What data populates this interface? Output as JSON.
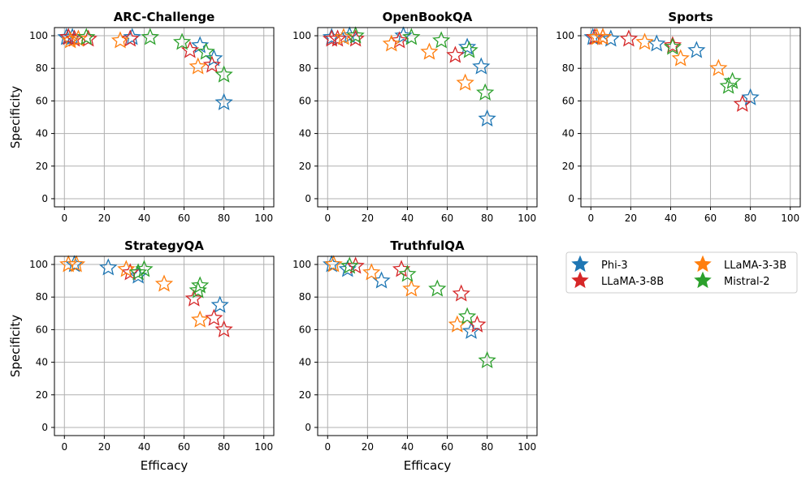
{
  "chart_data": {
    "type": "scatter",
    "marker": "hollow-star",
    "xlabel": "Efficacy",
    "ylabel": "Specificity",
    "xlim": [
      -5,
      105
    ],
    "ylim": [
      -5,
      105
    ],
    "xticks": [
      0,
      20,
      40,
      60,
      80,
      100
    ],
    "yticks": [
      0,
      20,
      40,
      60,
      80,
      100
    ],
    "grid": true,
    "series_colors": {
      "Phi-3": "#1f77b4",
      "LLaMA-3-8B": "#d62728",
      "LLaMA-3-3B": "#ff7f0e",
      "Mistral-2": "#2ca02c"
    },
    "legend": {
      "placement": "right of bottom row",
      "entries": [
        {
          "name": "Phi-3",
          "color": "#1f77b4"
        },
        {
          "name": "LLaMA-3-8B",
          "color": "#d62728"
        },
        {
          "name": "LLaMA-3-3B",
          "color": "#ff7f0e"
        },
        {
          "name": "Mistral-2",
          "color": "#2ca02c"
        }
      ]
    },
    "panels": [
      {
        "title": "ARC-Challenge",
        "series": [
          {
            "name": "Phi-3",
            "points": [
              [
                1,
                99
              ],
              [
                2,
                99
              ],
              [
                4,
                99
              ],
              [
                34,
                99
              ],
              [
                68,
                94
              ],
              [
                75,
                86
              ],
              [
                80,
                59
              ]
            ]
          },
          {
            "name": "LLaMA-3-8B",
            "points": [
              [
                2,
                99
              ],
              [
                5,
                98
              ],
              [
                12,
                98
              ],
              [
                33,
                98
              ],
              [
                63,
                91
              ],
              [
                74,
                82
              ]
            ]
          },
          {
            "name": "LLaMA-3-3B",
            "points": [
              [
                3,
                97
              ],
              [
                7,
                98
              ],
              [
                28,
                97
              ],
              [
                67,
                81
              ]
            ]
          },
          {
            "name": "Mistral-2",
            "points": [
              [
                11,
                99
              ],
              [
                43,
                99
              ],
              [
                59,
                96
              ],
              [
                71,
                90
              ],
              [
                80,
                76
              ]
            ]
          }
        ]
      },
      {
        "title": "OpenBookQA",
        "series": [
          {
            "name": "Phi-3",
            "points": [
              [
                2,
                99
              ],
              [
                11,
                100
              ],
              [
                38,
                100
              ],
              [
                70,
                93
              ],
              [
                77,
                81
              ],
              [
                80,
                49
              ]
            ]
          },
          {
            "name": "LLaMA-3-8B",
            "points": [
              [
                2,
                98
              ],
              [
                5,
                98
              ],
              [
                14,
                98
              ],
              [
                36,
                97
              ],
              [
                64,
                88
              ]
            ]
          },
          {
            "name": "LLaMA-3-3B",
            "points": [
              [
                8,
                99
              ],
              [
                32,
                95
              ],
              [
                51,
                90
              ],
              [
                69,
                71
              ]
            ]
          },
          {
            "name": "Mistral-2",
            "points": [
              [
                14,
                100
              ],
              [
                42,
                99
              ],
              [
                57,
                97
              ],
              [
                71,
                91
              ],
              [
                79,
                65
              ]
            ]
          }
        ]
      },
      {
        "title": "Sports",
        "series": [
          {
            "name": "Phi-3",
            "points": [
              [
                1,
                99
              ],
              [
                10,
                98
              ],
              [
                33,
                95
              ],
              [
                53,
                91
              ],
              [
                80,
                62
              ]
            ]
          },
          {
            "name": "LLaMA-3-8B",
            "points": [
              [
                2,
                99
              ],
              [
                6,
                99
              ],
              [
                19,
                98
              ],
              [
                41,
                94
              ],
              [
                76,
                58
              ]
            ]
          },
          {
            "name": "LLaMA-3-3B",
            "points": [
              [
                3,
                99
              ],
              [
                6,
                99
              ],
              [
                27,
                96
              ],
              [
                45,
                86
              ],
              [
                64,
                80
              ]
            ]
          },
          {
            "name": "Mistral-2",
            "points": [
              [
                41,
                93
              ],
              [
                69,
                69
              ],
              [
                71,
                72
              ]
            ]
          }
        ]
      },
      {
        "title": "StrategyQA",
        "series": [
          {
            "name": "Phi-3",
            "points": [
              [
                5,
                100
              ],
              [
                22,
                98
              ],
              [
                37,
                93
              ],
              [
                78,
                75
              ]
            ]
          },
          {
            "name": "LLaMA-3-8B",
            "points": [
              [
                33,
                95
              ],
              [
                65,
                79
              ],
              [
                75,
                67
              ],
              [
                80,
                60
              ]
            ]
          },
          {
            "name": "LLaMA-3-3B",
            "points": [
              [
                2,
                100
              ],
              [
                6,
                100
              ],
              [
                31,
                97
              ],
              [
                50,
                88
              ],
              [
                68,
                66
              ]
            ]
          },
          {
            "name": "Mistral-2",
            "points": [
              [
                37,
                95
              ],
              [
                40,
                97
              ],
              [
                67,
                84
              ],
              [
                68,
                87
              ]
            ]
          }
        ]
      },
      {
        "title": "TruthfulQA",
        "series": [
          {
            "name": "Phi-3",
            "points": [
              [
                2,
                100
              ],
              [
                10,
                97
              ],
              [
                27,
                90
              ],
              [
                72,
                59
              ]
            ]
          },
          {
            "name": "LLaMA-3-8B",
            "points": [
              [
                14,
                99
              ],
              [
                37,
                97
              ],
              [
                67,
                82
              ],
              [
                75,
                63
              ]
            ]
          },
          {
            "name": "LLaMA-3-3B",
            "points": [
              [
                3,
                100
              ],
              [
                22,
                95
              ],
              [
                42,
                85
              ],
              [
                65,
                63
              ]
            ]
          },
          {
            "name": "Mistral-2",
            "points": [
              [
                11,
                99
              ],
              [
                40,
                94
              ],
              [
                55,
                85
              ],
              [
                70,
                68
              ],
              [
                80,
                41
              ]
            ]
          }
        ]
      }
    ]
  }
}
